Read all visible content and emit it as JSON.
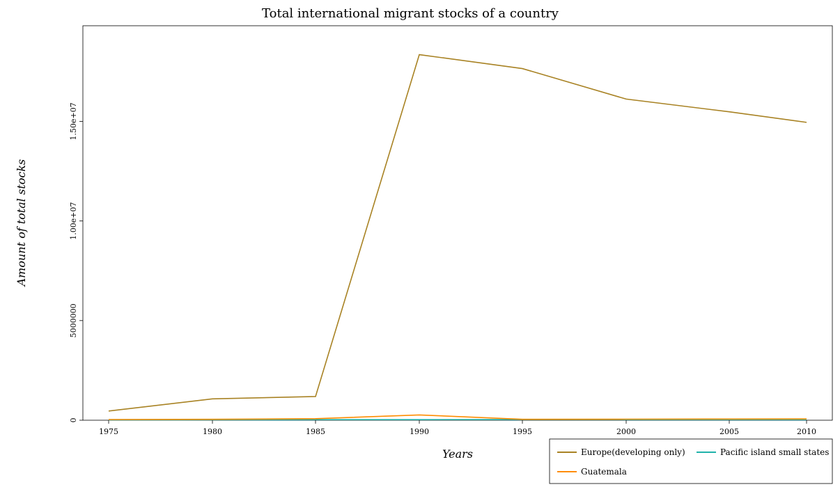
{
  "chart_data": {
    "type": "line",
    "title": "Total international migrant stocks of a country",
    "xlabel": "Years",
    "ylabel": "Amount of total stocks",
    "x": [
      1975,
      1980,
      1985,
      1990,
      1995,
      2000,
      2005,
      2010
    ],
    "ylim": [
      0,
      19800000
    ],
    "yticks": [
      0,
      5000000,
      10000000,
      15000000
    ],
    "ytick_labels": [
      "0",
      "5000000",
      "1.00e+07",
      "1.50e+07"
    ],
    "grid": false,
    "legend_position": "bottom-right",
    "series": [
      {
        "name": "Europe(developing only)",
        "color": "#a88223",
        "values": [
          460000,
          1070000,
          1190000,
          18350000,
          17650000,
          16120000,
          15480000,
          14950000
        ]
      },
      {
        "name": "Pacific island small states",
        "color": "#20b2aa",
        "values": [
          20000,
          22000,
          28000,
          30000,
          32000,
          30000,
          29000,
          28000
        ]
      },
      {
        "name": "Guatemala",
        "color": "#ff8c00",
        "values": [
          35000,
          45000,
          75000,
          265000,
          45000,
          52000,
          60000,
          65000
        ]
      }
    ]
  }
}
